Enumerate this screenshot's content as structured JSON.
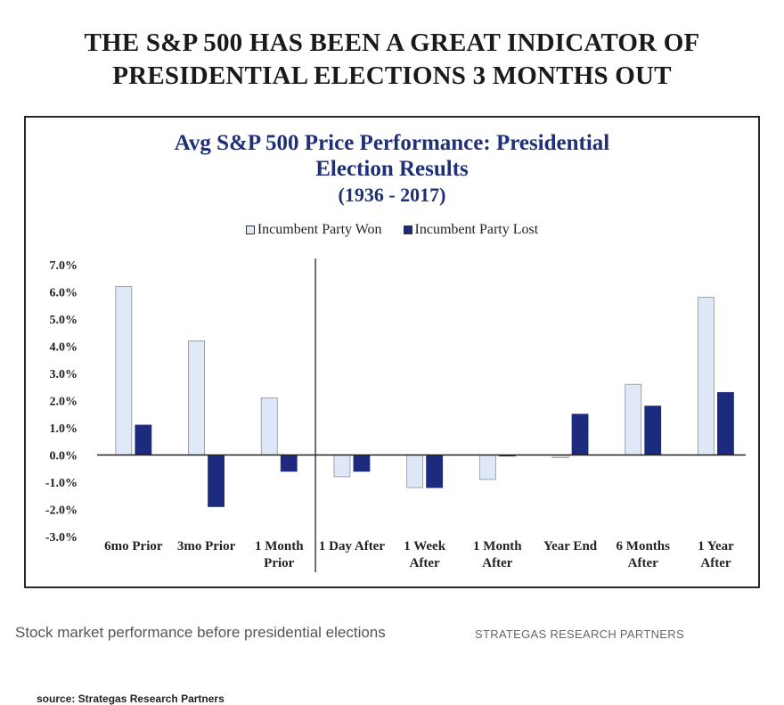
{
  "headline": {
    "line1": "THE S&P 500 HAS BEEN A GREAT INDICATOR OF",
    "line2": "PRESIDENTIAL ELECTIONS 3 MONTHS OUT"
  },
  "source": "source: Strategas Research Partners",
  "caption": {
    "text": "Stock market performance before presidential elections",
    "credit": "STRATEGAS RESEARCH PARTNERS"
  },
  "chart_data": {
    "type": "bar",
    "title_line1": "Avg S&P 500 Price Performance: Presidential",
    "title_line2": "Election Results",
    "subtitle": "(1936 - 2017)",
    "categories": [
      [
        "6mo Prior"
      ],
      [
        "3mo Prior"
      ],
      [
        "1 Month",
        "Prior"
      ],
      [
        "1 Day After"
      ],
      [
        "1 Week",
        "After"
      ],
      [
        "1 Month",
        "After"
      ],
      [
        "Year End"
      ],
      [
        "6 Months",
        "After"
      ],
      [
        "1 Year",
        "After"
      ]
    ],
    "series": [
      {
        "name": "Incumbent Party Won",
        "color": "#dfe8f7",
        "values": [
          6.2,
          4.2,
          2.1,
          -0.8,
          -1.2,
          -0.9,
          -0.1,
          2.6,
          5.8
        ]
      },
      {
        "name": "Incumbent Party Lost",
        "color": "#1c2b7d",
        "values": [
          1.1,
          -1.9,
          -0.6,
          -0.6,
          -1.2,
          0.0,
          1.5,
          1.8,
          2.3
        ]
      }
    ],
    "yticks": [
      "7.0%",
      "6.0%",
      "5.0%",
      "4.0%",
      "3.0%",
      "2.0%",
      "1.0%",
      "0.0%",
      "-1.0%",
      "-2.0%",
      "-3.0%"
    ],
    "ylim": [
      -3,
      7
    ],
    "divider_after_index": 2,
    "legend_position": "top-center",
    "grid": false
  }
}
